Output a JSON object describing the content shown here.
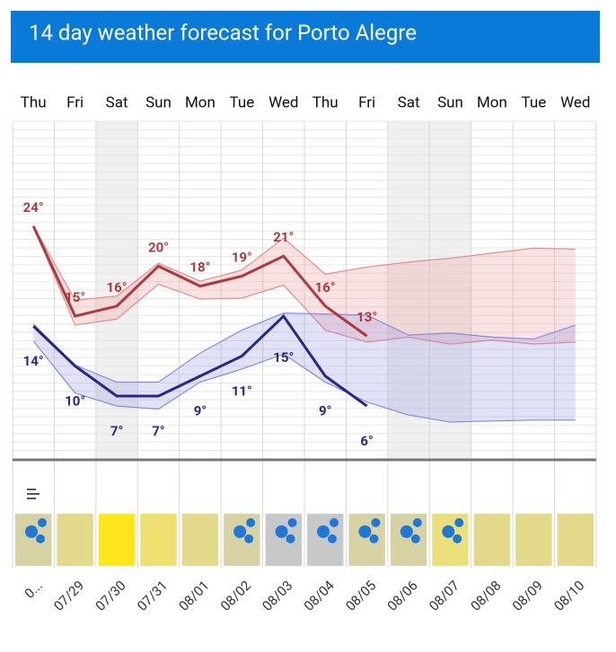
{
  "chart_data": {
    "type": "line",
    "title": "14 day weather forecast for Porto Alegre",
    "categories": [
      "Thu",
      "Fri",
      "Sat",
      "Sun",
      "Mon",
      "Tue",
      "Wed",
      "Thu",
      "Fri",
      "Sat",
      "Sun",
      "Mon",
      "Tue",
      "Wed"
    ],
    "dates": [
      "0...",
      "07/29",
      "07/30",
      "07/31",
      "08/01",
      "08/02",
      "08/03",
      "08/04",
      "08/05",
      "08/06",
      "08/07",
      "08/08",
      "08/09",
      "08/10"
    ],
    "ylim": [
      0.8,
      34.5
    ],
    "series": [
      {
        "color": "#b03a3a",
        "values": [
          24,
          15,
          16,
          20,
          18,
          19,
          21,
          16,
          13,
          null,
          null,
          null,
          null,
          null
        ],
        "value_labels": [
          "24°",
          "15°",
          "16°",
          "20°",
          "18°",
          "19°",
          "21°",
          "16°",
          "13°",
          null,
          null,
          null,
          null,
          null
        ]
      },
      {
        "color": "#25288a",
        "values": [
          14,
          10,
          7,
          7,
          9,
          11,
          15,
          9,
          6,
          null,
          null,
          null,
          null,
          null
        ],
        "value_labels": [
          "14°",
          "10°",
          "7°",
          "7°",
          "9°",
          "11°",
          "15°",
          "9°",
          "6°",
          null,
          null,
          null,
          null,
          null
        ]
      }
    ],
    "bands": [
      {
        "color": "#e88a8a",
        "upper": [
          24,
          16.6,
          17,
          20.3,
          18.5,
          19.6,
          22.8,
          19.2,
          19.9,
          20.4,
          20.8,
          21.3,
          21.8,
          21.7
        ],
        "lower": [
          24,
          14.1,
          14.7,
          18.2,
          16.7,
          16.8,
          18.1,
          13.6,
          12.4,
          12.9,
          12.2,
          12.6,
          12.2,
          12.4
        ]
      },
      {
        "color": "#8a8ae0",
        "upper": [
          14.2,
          10.1,
          8.4,
          8.4,
          11.3,
          13.6,
          15.3,
          15.2,
          15.1,
          13.1,
          13.3,
          12.9,
          12.7,
          14.1
        ],
        "lower": [
          12.5,
          7.3,
          6,
          5.7,
          8.4,
          9.7,
          11.2,
          8.4,
          6.4,
          5.1,
          4.4,
          4.5,
          4.6,
          4.6
        ]
      }
    ]
  }
}
